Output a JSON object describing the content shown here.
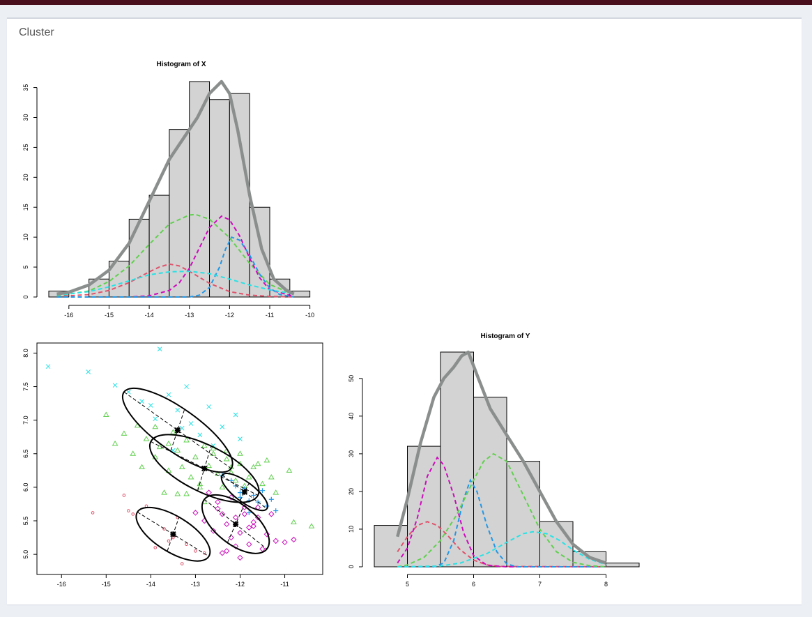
{
  "box": {
    "title": "Cluster"
  },
  "colors": {
    "density": "#8a8f8d",
    "bar_fill": "#d3d3d3",
    "red": "#df536b",
    "green": "#61d04f",
    "magenta": "#cd0bbc",
    "blue": "#2297e6",
    "cyan": "#28e2e5"
  },
  "chart_data": [
    {
      "type": "histogram",
      "title": "Histogram of X",
      "xlabel": "",
      "ylabel": "",
      "xlim": [
        -16.5,
        -9.9
      ],
      "ylim": [
        0,
        36
      ],
      "xticks": [
        -16,
        -15,
        -14,
        -13,
        -12,
        -11,
        -10
      ],
      "yticks": [
        0,
        5,
        10,
        15,
        20,
        25,
        30,
        35
      ],
      "bin_edges": [
        -16.5,
        -16,
        -15.5,
        -15,
        -14.5,
        -14,
        -13.5,
        -13,
        -12.5,
        -12,
        -11.5,
        -11,
        -10.5,
        -10
      ],
      "counts": [
        1,
        0,
        3,
        6,
        13,
        17,
        28,
        36,
        33,
        34,
        15,
        3,
        1
      ],
      "total_density": {
        "x": [
          -16.3,
          -16,
          -15.5,
          -15,
          -14.5,
          -14,
          -13.5,
          -13,
          -12.8,
          -12.5,
          -12.2,
          -12.0,
          -11.8,
          -11.5,
          -11.2,
          -10.9,
          -10.6,
          -10.4
        ],
        "y": [
          0.5,
          0.8,
          2,
          4.5,
          9,
          16,
          23,
          28,
          30,
          34,
          36,
          34,
          28,
          17,
          8,
          3,
          1.2,
          0.5
        ]
      },
      "components": [
        {
          "color": "red",
          "x": [
            -16.3,
            -15.5,
            -15,
            -14.5,
            -14,
            -13.75,
            -13.5,
            -13.25,
            -13,
            -12.5,
            -12,
            -11.5,
            -11,
            -10.4
          ],
          "y": [
            0.1,
            0.4,
            1.1,
            2.4,
            4.2,
            5.0,
            5.5,
            5.2,
            4.3,
            2.3,
            0.9,
            0.3,
            0.1,
            0
          ]
        },
        {
          "color": "green",
          "x": [
            -16.3,
            -15.5,
            -15,
            -14.5,
            -14,
            -13.5,
            -13,
            -12.85,
            -12.5,
            -12,
            -11.5,
            -11,
            -10.4
          ],
          "y": [
            0.2,
            1.0,
            2.6,
            5.2,
            8.8,
            12.2,
            13.7,
            13.8,
            13.0,
            9.9,
            5.6,
            2.1,
            0.4
          ]
        },
        {
          "color": "magenta",
          "x": [
            -16.3,
            -14.5,
            -14,
            -13.5,
            -13.25,
            -13,
            -12.75,
            -12.5,
            -12.2,
            -12,
            -11.75,
            -11.5,
            -11.25,
            -11,
            -10.4
          ],
          "y": [
            0,
            0,
            0.2,
            1.1,
            2.4,
            4.8,
            8.2,
            11.6,
            13.5,
            12.9,
            10.2,
            6.5,
            3.2,
            1.2,
            0.1
          ]
        },
        {
          "color": "blue",
          "x": [
            -16.3,
            -13,
            -12.75,
            -12.5,
            -12.25,
            -12.1,
            -11.95,
            -11.75,
            -11.5,
            -11.25,
            -11,
            -10.75,
            -10.4
          ],
          "y": [
            0,
            0,
            0.3,
            1.6,
            5.0,
            8.0,
            10.0,
            9.5,
            7.0,
            3.8,
            1.5,
            0.4,
            0
          ]
        },
        {
          "color": "cyan",
          "x": [
            -16.3,
            -15.5,
            -15,
            -14.5,
            -14,
            -13.5,
            -13,
            -12.5,
            -12,
            -11.5,
            -11,
            -10.4
          ],
          "y": [
            0.3,
            0.9,
            1.7,
            2.7,
            3.7,
            4.2,
            4.3,
            3.9,
            3.0,
            2.0,
            1.2,
            0.5
          ]
        }
      ]
    },
    {
      "type": "scatter",
      "title": "",
      "xlabel": "",
      "ylabel": "",
      "xlim": [
        -16.55,
        -10.15
      ],
      "ylim": [
        4.7,
        8.15
      ],
      "xticks": [
        -16,
        -15,
        -14,
        -13,
        -12,
        -11
      ],
      "yticks": [
        5.0,
        5.5,
        6.0,
        6.5,
        7.0,
        7.5,
        8.0
      ],
      "series": [
        {
          "color": "cyan",
          "marker": "x",
          "x": [
            -16.3,
            -15.4,
            -14.8,
            -14.5,
            -14.2,
            -14.0,
            -13.9,
            -13.8,
            -13.6,
            -13.4,
            -13.2,
            -13.1,
            -12.9,
            -12.6,
            -12.4,
            -12.1,
            -12.0,
            -13.5,
            -12.7,
            -13.3
          ],
          "y": [
            7.8,
            7.72,
            7.52,
            7.42,
            7.28,
            7.22,
            7.02,
            8.06,
            7.38,
            7.15,
            7.5,
            6.95,
            6.78,
            6.62,
            6.9,
            7.08,
            6.72,
            6.55,
            7.2,
            6.88
          ]
        },
        {
          "color": "green",
          "marker": "triangle",
          "x": [
            -15.0,
            -14.8,
            -14.6,
            -14.4,
            -14.3,
            -14.1,
            -13.9,
            -13.8,
            -13.6,
            -13.5,
            -13.4,
            -13.3,
            -13.2,
            -13.1,
            -13.0,
            -12.9,
            -12.8,
            -12.7,
            -12.6,
            -12.5,
            -12.4,
            -12.3,
            -12.2,
            -12.1,
            -12.0,
            -11.9,
            -11.8,
            -11.6,
            -11.5,
            -11.4,
            -11.2,
            -10.9,
            -10.8,
            -10.4,
            -13.7,
            -13.2,
            -12.9,
            -12.6,
            -14.2,
            -13.9,
            -12.3,
            -11.7,
            -13.6,
            -12.8,
            -13.4,
            -12.2,
            -12.0,
            -11.3
          ],
          "y": [
            7.08,
            6.65,
            6.8,
            6.5,
            6.92,
            6.72,
            6.45,
            6.6,
            6.25,
            6.82,
            6.55,
            6.3,
            6.7,
            6.15,
            6.45,
            6.05,
            6.62,
            6.32,
            6.5,
            6.2,
            6.0,
            6.42,
            6.3,
            6.1,
            6.5,
            6.02,
            6.15,
            6.35,
            6.05,
            6.4,
            5.92,
            6.25,
            5.48,
            5.42,
            5.92,
            5.9,
            6.0,
            6.58,
            6.3,
            6.9,
            6.55,
            6.3,
            6.65,
            5.78,
            5.9,
            6.22,
            6.35,
            6.15
          ]
        },
        {
          "color": "magenta",
          "marker": "diamond",
          "x": [
            -13.0,
            -12.8,
            -12.6,
            -12.5,
            -12.4,
            -12.3,
            -12.2,
            -12.1,
            -12.0,
            -11.9,
            -11.8,
            -11.7,
            -11.6,
            -11.5,
            -11.4,
            -11.3,
            -11.2,
            -11.0,
            -10.8,
            -12.7,
            -12.4,
            -12.2,
            -11.9,
            -12.0,
            -11.7,
            -11.6,
            -12.3,
            -12.5,
            -11.8,
            -12.1
          ],
          "y": [
            5.62,
            5.5,
            5.35,
            5.78,
            5.6,
            5.45,
            5.25,
            5.55,
            5.32,
            5.7,
            5.15,
            5.42,
            5.55,
            5.08,
            5.3,
            5.6,
            5.2,
            5.18,
            5.22,
            5.92,
            5.02,
            5.85,
            5.6,
            4.95,
            5.48,
            5.7,
            5.05,
            5.68,
            5.4,
            5.12
          ]
        },
        {
          "color": "blue",
          "marker": "plus",
          "x": [
            -12.4,
            -12.2,
            -12.1,
            -12.0,
            -11.9,
            -11.8,
            -11.7,
            -11.6,
            -11.5,
            -11.4,
            -11.3,
            -11.2,
            -11.8,
            -12.0
          ],
          "y": [
            6.18,
            6.1,
            6.02,
            5.92,
            5.98,
            5.8,
            5.88,
            5.78,
            5.95,
            5.72,
            5.82,
            5.65,
            5.62,
            5.85
          ]
        },
        {
          "color": "red",
          "marker": "circle",
          "x": [
            -15.3,
            -14.6,
            -14.4,
            -14.1,
            -13.9,
            -13.7,
            -13.6,
            -13.4,
            -13.3,
            -13.2,
            -13.0,
            -12.8,
            -13.5,
            -14.5
          ],
          "y": [
            5.62,
            5.88,
            5.6,
            5.72,
            5.1,
            5.38,
            5.2,
            5.55,
            4.86,
            5.15,
            5.05,
            5.02,
            5.25,
            5.65
          ]
        }
      ],
      "centers": [
        {
          "x": -13.4,
          "y": 6.85
        },
        {
          "x": -12.8,
          "y": 6.28
        },
        {
          "x": -11.9,
          "y": 5.93
        },
        {
          "x": -12.1,
          "y": 5.45
        },
        {
          "x": -13.5,
          "y": 5.3
        }
      ],
      "ellipses": [
        {
          "cx": -13.4,
          "cy": 6.85,
          "major": [
            [
              -14.6,
              7.42
            ],
            [
              -12.2,
              6.28
            ]
          ],
          "minor": [
            [
              -13.55,
              6.55
            ],
            [
              -13.25,
              7.15
            ]
          ]
        },
        {
          "cx": -12.8,
          "cy": 6.28,
          "major": [
            [
              -14.0,
              6.68
            ],
            [
              -11.6,
              5.88
            ]
          ],
          "minor": [
            [
              -12.95,
              5.95
            ],
            [
              -12.65,
              6.61
            ]
          ]
        },
        {
          "cx": -11.9,
          "cy": 5.93,
          "major": [
            [
              -12.4,
              6.18
            ],
            [
              -11.4,
              5.68
            ]
          ],
          "minor": [
            [
              -12.0,
              5.8
            ],
            [
              -11.8,
              6.06
            ]
          ]
        },
        {
          "cx": -12.1,
          "cy": 5.45,
          "major": [
            [
              -12.8,
              5.82
            ],
            [
              -11.4,
              5.08
            ]
          ],
          "minor": [
            [
              -12.28,
              5.18
            ],
            [
              -11.92,
              5.72
            ]
          ]
        },
        {
          "cx": -13.5,
          "cy": 5.3,
          "major": [
            [
              -14.3,
              5.63
            ],
            [
              -12.7,
              4.97
            ]
          ],
          "minor": [
            [
              -13.63,
              5.05
            ],
            [
              -13.37,
              5.55
            ]
          ]
        }
      ]
    },
    {
      "type": "histogram",
      "title": "Histogram of Y",
      "xlabel": "",
      "ylabel": "",
      "xlim": [
        4.5,
        8.5
      ],
      "ylim": [
        0,
        57
      ],
      "xticks": [
        5,
        6,
        7,
        8
      ],
      "yticks": [
        0,
        10,
        20,
        30,
        40,
        50
      ],
      "bin_edges": [
        4.5,
        5,
        5.5,
        6,
        6.5,
        7,
        7.5,
        8,
        8.5
      ],
      "counts": [
        11,
        32,
        57,
        45,
        28,
        12,
        4,
        1
      ],
      "total_density": {
        "x": [
          4.85,
          5.0,
          5.2,
          5.4,
          5.55,
          5.7,
          5.82,
          5.92,
          6.05,
          6.25,
          6.5,
          6.75,
          7.0,
          7.25,
          7.5,
          7.75,
          8.0
        ],
        "y": [
          8,
          18,
          33,
          45,
          50,
          53,
          56,
          57,
          51,
          42,
          35,
          28,
          20,
          12,
          6,
          2.5,
          1
        ]
      },
      "components": [
        {
          "color": "red",
          "x": [
            4.85,
            5.0,
            5.15,
            5.3,
            5.45,
            5.6,
            5.8,
            6.0,
            6.2,
            6.4,
            8.0
          ],
          "y": [
            4,
            8,
            11,
            12,
            11,
            8.5,
            4.5,
            1.8,
            0.5,
            0.1,
            0
          ]
        },
        {
          "color": "magenta",
          "x": [
            4.85,
            5.0,
            5.15,
            5.3,
            5.45,
            5.55,
            5.7,
            5.85,
            6.0,
            6.2,
            6.5,
            8.0
          ],
          "y": [
            1,
            5,
            13,
            24,
            29,
            27,
            19,
            9,
            3,
            0.4,
            0,
            0
          ]
        },
        {
          "color": "blue",
          "x": [
            4.85,
            5.4,
            5.55,
            5.7,
            5.85,
            5.95,
            6.05,
            6.2,
            6.35,
            6.5,
            6.65,
            8.0
          ],
          "y": [
            0,
            0,
            1,
            7,
            18,
            23,
            20,
            11,
            4,
            0.8,
            0,
            0
          ]
        },
        {
          "color": "green",
          "x": [
            4.85,
            5.0,
            5.25,
            5.5,
            5.75,
            6.0,
            6.15,
            6.3,
            6.5,
            6.75,
            7.0,
            7.25,
            7.5,
            7.75,
            8.0
          ],
          "y": [
            0,
            0.5,
            2.5,
            7,
            14,
            23,
            28,
            30,
            28,
            19,
            10,
            4,
            1.2,
            0.3,
            0
          ]
        },
        {
          "color": "cyan",
          "x": [
            4.85,
            5.5,
            5.8,
            6.2,
            6.5,
            6.75,
            6.9,
            7.1,
            7.3,
            7.5,
            7.75,
            8.0
          ],
          "y": [
            0,
            0.2,
            1,
            3.5,
            6.5,
            8.8,
            9.3,
            8.8,
            7,
            4.5,
            2,
            0.6
          ]
        }
      ]
    }
  ]
}
